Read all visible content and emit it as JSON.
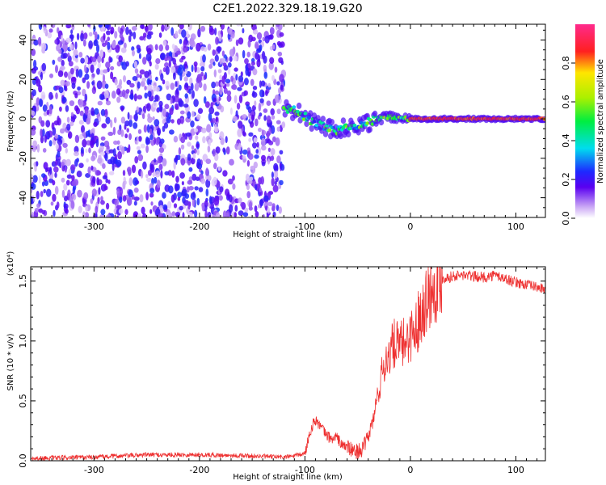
{
  "title": "C2E1.2022.329.18.19.G20",
  "chart_data": [
    {
      "type": "heatmap",
      "title": "C2E1.2022.329.18.19.G20",
      "xlabel": "Height of straight line (km)",
      "ylabel": "Frequency (Hz)",
      "xlim": [
        -360,
        128
      ],
      "ylim": [
        -50,
        48
      ],
      "xticks": [
        -300,
        -200,
        -100,
        0,
        100
      ],
      "xtick_labels": [
        "-300",
        "-200",
        "-100",
        "0",
        "100"
      ],
      "yticks": [
        -40,
        -20,
        0,
        20,
        40
      ],
      "ytick_labels": [
        "-40",
        "-20",
        "0",
        "20",
        "40"
      ],
      "noise_region_x": [
        -360,
        -120
      ],
      "signal_track": {
        "x": [
          -120,
          -110,
          -100,
          -90,
          -80,
          -70,
          -60,
          -50,
          -40,
          -30,
          -20,
          -10,
          0,
          50,
          100,
          128
        ],
        "frequency": [
          6,
          4,
          1,
          -2,
          -4,
          -6,
          -4,
          -3,
          -2,
          0,
          1,
          0,
          0,
          0,
          0,
          0
        ]
      },
      "colorbar": {
        "label": "Normalized spectral amplitude",
        "range": [
          0,
          1
        ],
        "ticks": [
          0.0,
          0.2,
          0.4,
          0.6,
          0.8
        ],
        "tick_labels": [
          "0.0",
          "0.2",
          "0.4",
          "0.6",
          "0.8"
        ]
      }
    },
    {
      "type": "line",
      "xlabel": "Height of straight line (km)",
      "ylabel": "SNR (10 * v/v)",
      "multiplier_label": "(x10⁴)",
      "xlim": [
        -360,
        128
      ],
      "ylim": [
        0.0,
        1.62
      ],
      "xticks": [
        -300,
        -200,
        -100,
        0,
        100
      ],
      "xtick_labels": [
        "-300",
        "-200",
        "-100",
        "0",
        "100"
      ],
      "yticks": [
        0.0,
        0.5,
        1.0,
        1.5
      ],
      "ytick_labels": [
        "0.0",
        "0.5",
        "1.0",
        "1.5"
      ],
      "series": [
        {
          "color": "#ee3030",
          "x": [
            -360,
            -300,
            -250,
            -200,
            -150,
            -120,
            -110,
            -100,
            -95,
            -90,
            -85,
            -80,
            -75,
            -70,
            -65,
            -60,
            -55,
            -50,
            -45,
            -40,
            -35,
            -30,
            -25,
            -20,
            -15,
            -10,
            -5,
            0,
            5,
            10,
            15,
            20,
            25,
            30,
            40,
            50,
            60,
            70,
            80,
            90,
            100,
            110,
            120,
            128
          ],
          "y": [
            0.02,
            0.03,
            0.05,
            0.05,
            0.04,
            0.03,
            0.04,
            0.06,
            0.25,
            0.35,
            0.28,
            0.22,
            0.18,
            0.2,
            0.13,
            0.12,
            0.08,
            0.08,
            0.1,
            0.2,
            0.35,
            0.6,
            0.8,
            0.9,
            0.98,
            0.95,
            1.0,
            1.05,
            1.1,
            1.25,
            1.35,
            1.42,
            1.48,
            1.52,
            1.54,
            1.55,
            1.54,
            1.53,
            1.55,
            1.52,
            1.49,
            1.47,
            1.45,
            1.43
          ]
        }
      ]
    }
  ]
}
